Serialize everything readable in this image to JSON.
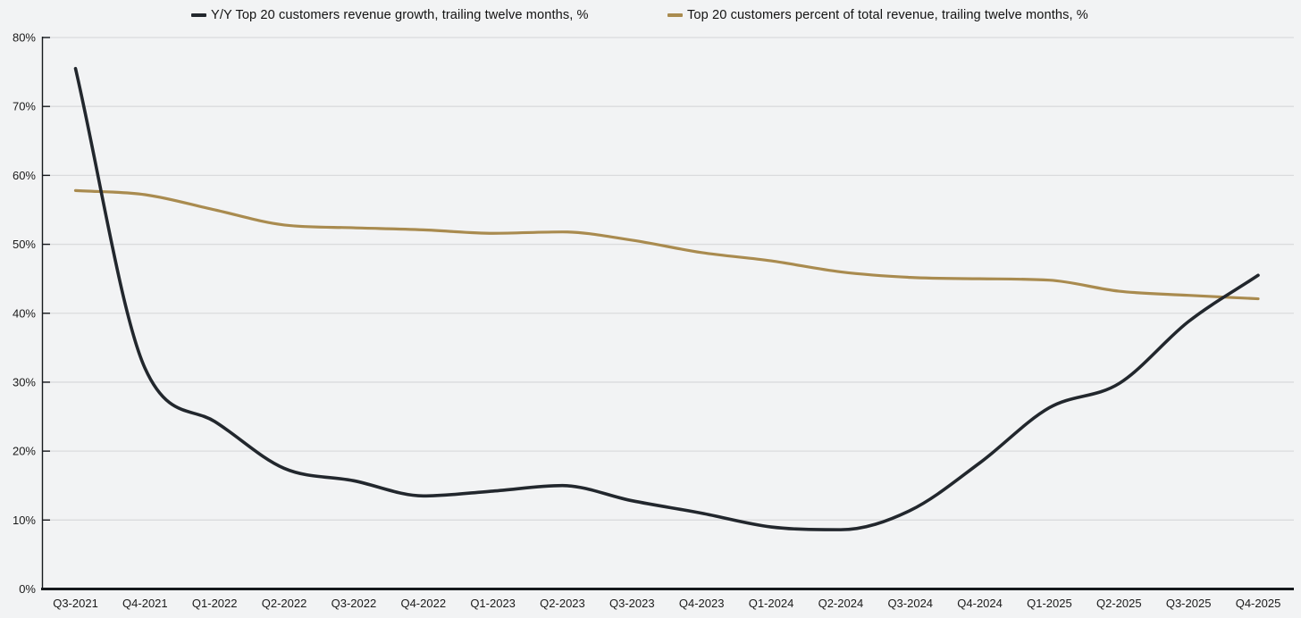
{
  "chart_data": {
    "type": "line",
    "title": "",
    "xlabel": "",
    "ylabel": "",
    "categories": [
      "Q3-2021",
      "Q4-2021",
      "Q1-2022",
      "Q2-2022",
      "Q3-2022",
      "Q4-2022",
      "Q1-2023",
      "Q2-2023",
      "Q3-2023",
      "Q4-2023",
      "Q1-2024",
      "Q2-2024",
      "Q3-2024",
      "Q4-2024",
      "Q1-2025",
      "Q2-2025",
      "Q3-2025",
      "Q4-2025"
    ],
    "series": [
      {
        "name": "Y/Y Top 20 customers revenue growth, trailing twelve months, %",
        "color": "#22272d",
        "line_width": 3.6,
        "values": [
          75.5,
          32.0,
          24.3,
          17.5,
          15.7,
          13.5,
          14.2,
          15.0,
          12.8,
          11.0,
          9.0,
          8.6,
          11.4,
          18.3,
          26.3,
          29.8,
          38.8,
          45.5
        ]
      },
      {
        "name": "Top 20 customers percent of total revenue, trailing twelve months, %",
        "color": "#a98b4f",
        "line_width": 3.2,
        "values": [
          57.8,
          57.2,
          55.0,
          52.8,
          52.4,
          52.1,
          51.6,
          51.8,
          50.6,
          48.8,
          47.6,
          46.0,
          45.2,
          45.0,
          44.8,
          43.2,
          42.6,
          42.1
        ]
      }
    ],
    "ylim": [
      0,
      80
    ],
    "y_ticks": [
      {
        "value": 80,
        "label": "80%"
      },
      {
        "value": 70,
        "label": "70%"
      },
      {
        "value": 60,
        "label": "60%"
      },
      {
        "value": 50,
        "label": "50%"
      },
      {
        "value": 40,
        "label": "40%"
      },
      {
        "value": 30,
        "label": "30%"
      },
      {
        "value": 20,
        "label": "20%"
      },
      {
        "value": 10,
        "label": "10%"
      },
      {
        "value": 0,
        "label": "0%"
      }
    ],
    "grid": "horizontal",
    "legend_position": "top",
    "curve": "monotone",
    "colors": {
      "background": "#f2f3f4",
      "gridline": "#dadbdd",
      "axis": "#16191d",
      "tick_label": "#1a1a1a"
    }
  }
}
